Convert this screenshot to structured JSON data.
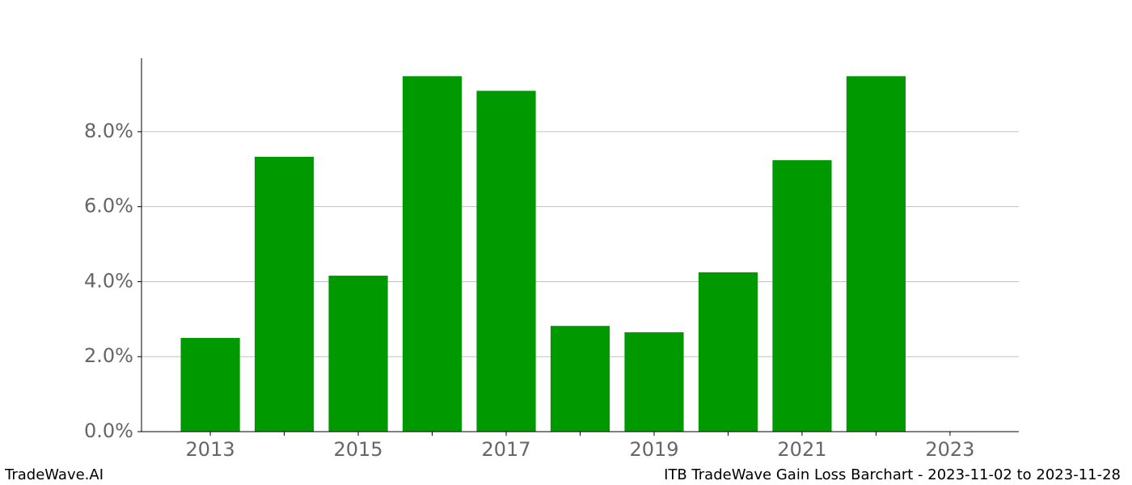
{
  "chart_data": {
    "type": "bar",
    "x": [
      2013,
      2014,
      2015,
      2016,
      2017,
      2018,
      2019,
      2020,
      2021,
      2022
    ],
    "values": [
      2.5,
      7.33,
      4.16,
      9.48,
      9.09,
      2.82,
      2.65,
      4.25,
      7.24,
      9.48
    ],
    "color": "#009900",
    "xlim": [
      2012.07,
      2023.93
    ],
    "xticks": [
      2013,
      2015,
      2017,
      2019,
      2021,
      2023
    ],
    "xminor_ticks": [
      2014,
      2016,
      2018,
      2020,
      2022
    ],
    "ylim": [
      0,
      9.96
    ],
    "yticks": [
      {
        "value": 0,
        "label": "0.0%"
      },
      {
        "value": 2,
        "label": "2.0%"
      },
      {
        "value": 4,
        "label": "4.0%"
      },
      {
        "value": 6,
        "label": "6.0%"
      },
      {
        "value": 8,
        "label": "8.0%"
      }
    ],
    "grid": true,
    "footer_left": "TradeWave.AI",
    "footer_right": "ITB TradeWave Gain Loss Barchart - 2023-11-02 to 2023-11-28"
  }
}
